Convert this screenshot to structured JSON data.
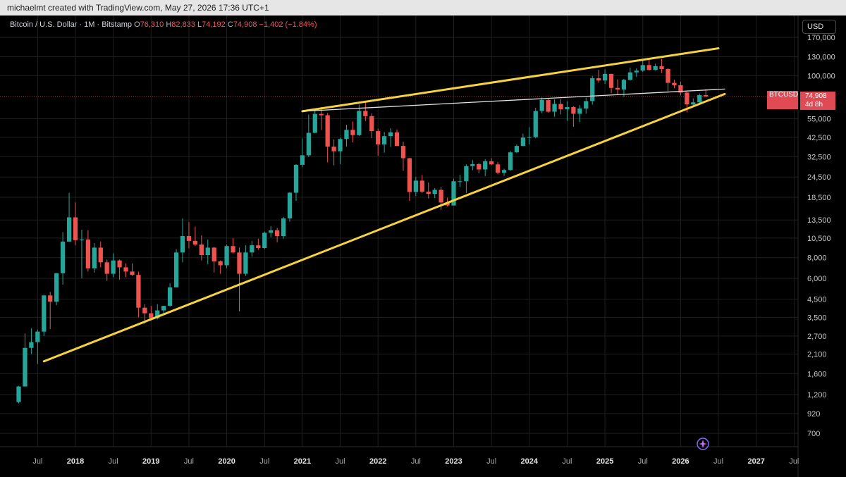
{
  "attribution": "michaelmt created with TradingView.com, May 27, 2026 17:36 UTC+1",
  "header": {
    "symbol": "Bitcoin / U.S. Dollar · 1M · Bitstamp",
    "open_label": "O",
    "open": "76,310",
    "high_label": "H",
    "high": "82,833",
    "low_label": "L",
    "low": "74,192",
    "close_label": "C",
    "close": "74,908",
    "change": "−1,402 (−1.84%)"
  },
  "currency_button": "USD",
  "price_tag": {
    "ticker": "BTCUSD",
    "price": "74,908",
    "countdown": "4d 8h"
  },
  "colors": {
    "up": "#26a69a",
    "down": "#ef5350",
    "trendline": "#f5d33f",
    "resistance": "#e0e0e0",
    "grid": "#1f1f1f",
    "background": "#000000"
  },
  "chart_data": {
    "type": "candlestick",
    "x_axis": {
      "ticks": [
        "Jul",
        "2018",
        "Jul",
        "2019",
        "Jul",
        "2020",
        "Jul",
        "2021",
        "Jul",
        "2022",
        "Jul",
        "2023",
        "Jul",
        "2024",
        "Jul",
        "2025",
        "Jul",
        "2026",
        "Jul",
        "2027",
        "Jul"
      ]
    },
    "y_axis": {
      "scale": "log",
      "ticks": [
        700,
        920,
        1200,
        1600,
        2100,
        2700,
        3500,
        4500,
        6000,
        8000,
        10500,
        13500,
        18500,
        24500,
        32500,
        42500,
        55000,
        100000,
        130000,
        170000
      ],
      "tick_labels": [
        "700",
        "920",
        "1,200",
        "1,600",
        "2,100",
        "2,700",
        "3,500",
        "4,500",
        "6,000",
        "8,000",
        "10,500",
        "13,500",
        "18,500",
        "24,500",
        "32,500",
        "42,500",
        "55,000",
        "100,000",
        "130,000",
        "170,000"
      ]
    },
    "series": [
      {
        "symbol": "BTCUSD",
        "interval": "1M",
        "candles": [
          {
            "t": "2017-04",
            "o": 1080,
            "h": 1350,
            "l": 1060,
            "c": 1340
          },
          {
            "t": "2017-05",
            "o": 1340,
            "h": 2800,
            "l": 1340,
            "c": 2290
          },
          {
            "t": "2017-06",
            "o": 2290,
            "h": 3000,
            "l": 2100,
            "c": 2480
          },
          {
            "t": "2017-07",
            "o": 2480,
            "h": 2950,
            "l": 1830,
            "c": 2870
          },
          {
            "t": "2017-08",
            "o": 2870,
            "h": 4780,
            "l": 2700,
            "c": 4740
          },
          {
            "t": "2017-09",
            "o": 4740,
            "h": 4980,
            "l": 2970,
            "c": 4340
          },
          {
            "t": "2017-10",
            "o": 4340,
            "h": 6470,
            "l": 4140,
            "c": 6450
          },
          {
            "t": "2017-11",
            "o": 6450,
            "h": 11400,
            "l": 5500,
            "c": 10000
          },
          {
            "t": "2017-12",
            "o": 10000,
            "h": 19700,
            "l": 10000,
            "c": 14000
          },
          {
            "t": "2018-01",
            "o": 14000,
            "h": 17200,
            "l": 9500,
            "c": 10200
          },
          {
            "t": "2018-02",
            "o": 10200,
            "h": 11800,
            "l": 6000,
            "c": 10300
          },
          {
            "t": "2018-03",
            "o": 10300,
            "h": 11700,
            "l": 6600,
            "c": 6900
          },
          {
            "t": "2018-04",
            "o": 6900,
            "h": 9800,
            "l": 6500,
            "c": 9200
          },
          {
            "t": "2018-05",
            "o": 9200,
            "h": 10000,
            "l": 7000,
            "c": 7500
          },
          {
            "t": "2018-06",
            "o": 7500,
            "h": 7800,
            "l": 5800,
            "c": 6400
          },
          {
            "t": "2018-07",
            "o": 6400,
            "h": 8500,
            "l": 6100,
            "c": 7700
          },
          {
            "t": "2018-08",
            "o": 7700,
            "h": 7800,
            "l": 5900,
            "c": 7000
          },
          {
            "t": "2018-09",
            "o": 7000,
            "h": 7400,
            "l": 6100,
            "c": 6600
          },
          {
            "t": "2018-10",
            "o": 6600,
            "h": 7400,
            "l": 6200,
            "c": 6300
          },
          {
            "t": "2018-11",
            "o": 6300,
            "h": 6600,
            "l": 3500,
            "c": 4000
          },
          {
            "t": "2018-12",
            "o": 4000,
            "h": 4200,
            "l": 3200,
            "c": 3700
          },
          {
            "t": "2019-01",
            "o": 3700,
            "h": 4100,
            "l": 3400,
            "c": 3450
          },
          {
            "t": "2019-02",
            "o": 3450,
            "h": 4200,
            "l": 3400,
            "c": 3850
          },
          {
            "t": "2019-03",
            "o": 3850,
            "h": 4100,
            "l": 3700,
            "c": 4100
          },
          {
            "t": "2019-04",
            "o": 4100,
            "h": 5600,
            "l": 4050,
            "c": 5300
          },
          {
            "t": "2019-05",
            "o": 5300,
            "h": 9000,
            "l": 5300,
            "c": 8600
          },
          {
            "t": "2019-06",
            "o": 8600,
            "h": 13800,
            "l": 7500,
            "c": 10800
          },
          {
            "t": "2019-07",
            "o": 10800,
            "h": 13100,
            "l": 9100,
            "c": 10100
          },
          {
            "t": "2019-08",
            "o": 10100,
            "h": 12300,
            "l": 9400,
            "c": 9600
          },
          {
            "t": "2019-09",
            "o": 9600,
            "h": 10900,
            "l": 7700,
            "c": 8300
          },
          {
            "t": "2019-10",
            "o": 8300,
            "h": 10300,
            "l": 7300,
            "c": 9200
          },
          {
            "t": "2019-11",
            "o": 9200,
            "h": 9300,
            "l": 6500,
            "c": 7600
          },
          {
            "t": "2019-12",
            "o": 7600,
            "h": 7700,
            "l": 6400,
            "c": 7200
          },
          {
            "t": "2020-01",
            "o": 7200,
            "h": 9600,
            "l": 6900,
            "c": 9400
          },
          {
            "t": "2020-02",
            "o": 9400,
            "h": 10500,
            "l": 8500,
            "c": 8600
          },
          {
            "t": "2020-03",
            "o": 8600,
            "h": 9200,
            "l": 3800,
            "c": 6400
          },
          {
            "t": "2020-04",
            "o": 6400,
            "h": 9500,
            "l": 6200,
            "c": 8600
          },
          {
            "t": "2020-05",
            "o": 8600,
            "h": 10100,
            "l": 8100,
            "c": 9500
          },
          {
            "t": "2020-06",
            "o": 9500,
            "h": 10400,
            "l": 8900,
            "c": 9150
          },
          {
            "t": "2020-07",
            "o": 9150,
            "h": 11500,
            "l": 9000,
            "c": 11300
          },
          {
            "t": "2020-08",
            "o": 11300,
            "h": 12400,
            "l": 10600,
            "c": 11700
          },
          {
            "t": "2020-09",
            "o": 11700,
            "h": 12100,
            "l": 9900,
            "c": 10800
          },
          {
            "t": "2020-10",
            "o": 10800,
            "h": 14100,
            "l": 10400,
            "c": 13800
          },
          {
            "t": "2020-11",
            "o": 13800,
            "h": 19900,
            "l": 13200,
            "c": 19700
          },
          {
            "t": "2020-12",
            "o": 19700,
            "h": 29300,
            "l": 17600,
            "c": 29000
          },
          {
            "t": "2021-01",
            "o": 29000,
            "h": 41900,
            "l": 28100,
            "c": 33100
          },
          {
            "t": "2021-02",
            "o": 33100,
            "h": 58300,
            "l": 32300,
            "c": 45200
          },
          {
            "t": "2021-03",
            "o": 45200,
            "h": 61700,
            "l": 45000,
            "c": 58800
          },
          {
            "t": "2021-04",
            "o": 58800,
            "h": 64800,
            "l": 47000,
            "c": 57700
          },
          {
            "t": "2021-05",
            "o": 57700,
            "h": 59500,
            "l": 30000,
            "c": 37300
          },
          {
            "t": "2021-06",
            "o": 37300,
            "h": 41300,
            "l": 28800,
            "c": 35000
          },
          {
            "t": "2021-07",
            "o": 35000,
            "h": 42300,
            "l": 29300,
            "c": 41500
          },
          {
            "t": "2021-08",
            "o": 41500,
            "h": 50500,
            "l": 37300,
            "c": 47100
          },
          {
            "t": "2021-09",
            "o": 47100,
            "h": 52900,
            "l": 39600,
            "c": 43800
          },
          {
            "t": "2021-10",
            "o": 43800,
            "h": 67000,
            "l": 43300,
            "c": 61300
          },
          {
            "t": "2021-11",
            "o": 61300,
            "h": 69000,
            "l": 53300,
            "c": 57000
          },
          {
            "t": "2021-12",
            "o": 57000,
            "h": 59100,
            "l": 42000,
            "c": 46300
          },
          {
            "t": "2022-01",
            "o": 46300,
            "h": 47900,
            "l": 32900,
            "c": 38500
          },
          {
            "t": "2022-02",
            "o": 38500,
            "h": 45800,
            "l": 34300,
            "c": 43200
          },
          {
            "t": "2022-03",
            "o": 43200,
            "h": 48200,
            "l": 37200,
            "c": 45500
          },
          {
            "t": "2022-04",
            "o": 45500,
            "h": 47400,
            "l": 37700,
            "c": 37700
          },
          {
            "t": "2022-05",
            "o": 37700,
            "h": 40000,
            "l": 26700,
            "c": 31800
          },
          {
            "t": "2022-06",
            "o": 31800,
            "h": 31900,
            "l": 17600,
            "c": 19900
          },
          {
            "t": "2022-07",
            "o": 19900,
            "h": 24600,
            "l": 18800,
            "c": 23300
          },
          {
            "t": "2022-08",
            "o": 23300,
            "h": 25200,
            "l": 19600,
            "c": 20000
          },
          {
            "t": "2022-09",
            "o": 20000,
            "h": 22700,
            "l": 18200,
            "c": 19400
          },
          {
            "t": "2022-10",
            "o": 19400,
            "h": 21000,
            "l": 18300,
            "c": 20500
          },
          {
            "t": "2022-11",
            "o": 20500,
            "h": 21400,
            "l": 15500,
            "c": 17200
          },
          {
            "t": "2022-12",
            "o": 17200,
            "h": 18400,
            "l": 16300,
            "c": 16500
          },
          {
            "t": "2023-01",
            "o": 16500,
            "h": 23900,
            "l": 16500,
            "c": 23100
          },
          {
            "t": "2023-02",
            "o": 23100,
            "h": 25200,
            "l": 21400,
            "c": 23100
          },
          {
            "t": "2023-03",
            "o": 23100,
            "h": 29200,
            "l": 19600,
            "c": 28500
          },
          {
            "t": "2023-04",
            "o": 28500,
            "h": 31000,
            "l": 26900,
            "c": 29300
          },
          {
            "t": "2023-05",
            "o": 29300,
            "h": 29800,
            "l": 25800,
            "c": 27200
          },
          {
            "t": "2023-06",
            "o": 27200,
            "h": 31400,
            "l": 24800,
            "c": 30500
          },
          {
            "t": "2023-07",
            "o": 30500,
            "h": 31800,
            "l": 28900,
            "c": 29200
          },
          {
            "t": "2023-08",
            "o": 29200,
            "h": 30200,
            "l": 25400,
            "c": 26000
          },
          {
            "t": "2023-09",
            "o": 26000,
            "h": 27500,
            "l": 24900,
            "c": 27000
          },
          {
            "t": "2023-10",
            "o": 27000,
            "h": 35200,
            "l": 26600,
            "c": 34500
          },
          {
            "t": "2023-11",
            "o": 34500,
            "h": 38400,
            "l": 34100,
            "c": 37700
          },
          {
            "t": "2023-12",
            "o": 37700,
            "h": 44700,
            "l": 37600,
            "c": 42300
          },
          {
            "t": "2024-01",
            "o": 42300,
            "h": 48900,
            "l": 38500,
            "c": 42600
          },
          {
            "t": "2024-02",
            "o": 42600,
            "h": 64000,
            "l": 41900,
            "c": 61200
          },
          {
            "t": "2024-03",
            "o": 61200,
            "h": 73800,
            "l": 59300,
            "c": 71300
          },
          {
            "t": "2024-04",
            "o": 71300,
            "h": 72700,
            "l": 59700,
            "c": 60600
          },
          {
            "t": "2024-05",
            "o": 60600,
            "h": 71900,
            "l": 56500,
            "c": 67500
          },
          {
            "t": "2024-06",
            "o": 67500,
            "h": 71900,
            "l": 58400,
            "c": 62700
          },
          {
            "t": "2024-07",
            "o": 62700,
            "h": 70000,
            "l": 53500,
            "c": 64600
          },
          {
            "t": "2024-08",
            "o": 64600,
            "h": 65500,
            "l": 49100,
            "c": 58900
          },
          {
            "t": "2024-09",
            "o": 58900,
            "h": 66400,
            "l": 52500,
            "c": 63300
          },
          {
            "t": "2024-10",
            "o": 63300,
            "h": 73600,
            "l": 58900,
            "c": 70200
          },
          {
            "t": "2024-11",
            "o": 70200,
            "h": 99600,
            "l": 66800,
            "c": 96400
          },
          {
            "t": "2024-12",
            "o": 96400,
            "h": 108300,
            "l": 90500,
            "c": 93400
          },
          {
            "t": "2025-01",
            "o": 93400,
            "h": 109300,
            "l": 89200,
            "c": 102400
          },
          {
            "t": "2025-02",
            "o": 102400,
            "h": 102500,
            "l": 78300,
            "c": 84300
          },
          {
            "t": "2025-03",
            "o": 84300,
            "h": 95000,
            "l": 76600,
            "c": 82500
          },
          {
            "t": "2025-04",
            "o": 82500,
            "h": 95700,
            "l": 74500,
            "c": 94200
          },
          {
            "t": "2025-05",
            "o": 94200,
            "h": 111900,
            "l": 93400,
            "c": 104600
          },
          {
            "t": "2025-06",
            "o": 104600,
            "h": 110600,
            "l": 98200,
            "c": 107100
          },
          {
            "t": "2025-07",
            "o": 107100,
            "h": 123200,
            "l": 105300,
            "c": 115700
          },
          {
            "t": "2025-08",
            "o": 115700,
            "h": 124500,
            "l": 107300,
            "c": 108200
          },
          {
            "t": "2025-09",
            "o": 108200,
            "h": 117900,
            "l": 107300,
            "c": 114000
          },
          {
            "t": "2025-10",
            "o": 114000,
            "h": 126200,
            "l": 104000,
            "c": 109500
          },
          {
            "t": "2025-11",
            "o": 109500,
            "h": 110600,
            "l": 80600,
            "c": 90400
          },
          {
            "t": "2025-12",
            "o": 90400,
            "h": 94500,
            "l": 84000,
            "c": 87500
          },
          {
            "t": "2026-01",
            "o": 87500,
            "h": 92000,
            "l": 76000,
            "c": 79000
          },
          {
            "t": "2026-02",
            "o": 79000,
            "h": 80000,
            "l": 60000,
            "c": 67000
          },
          {
            "t": "2026-03",
            "o": 67000,
            "h": 73000,
            "l": 64500,
            "c": 69000
          },
          {
            "t": "2026-04",
            "o": 69000,
            "h": 78000,
            "l": 68000,
            "c": 76310
          },
          {
            "t": "2026-05",
            "o": 76310,
            "h": 82833,
            "l": 74192,
            "c": 74908
          }
        ]
      }
    ],
    "annotations": [
      {
        "type": "trendline",
        "name": "upper trendline",
        "points": [
          {
            "t": "2021-01",
            "p": 61000
          },
          {
            "t": "2026-07",
            "p": 146000
          }
        ]
      },
      {
        "type": "trendline",
        "name": "lower trendline",
        "points": [
          {
            "t": "2017-08",
            "p": 1900
          },
          {
            "t": "2026-08",
            "p": 77500
          }
        ]
      },
      {
        "type": "trendline",
        "name": "resistance line",
        "points": [
          {
            "t": "2021-01",
            "p": 61000
          },
          {
            "t": "2026-08",
            "p": 83000
          }
        ]
      },
      {
        "type": "hline",
        "name": "last price line",
        "p": 74908
      }
    ]
  }
}
